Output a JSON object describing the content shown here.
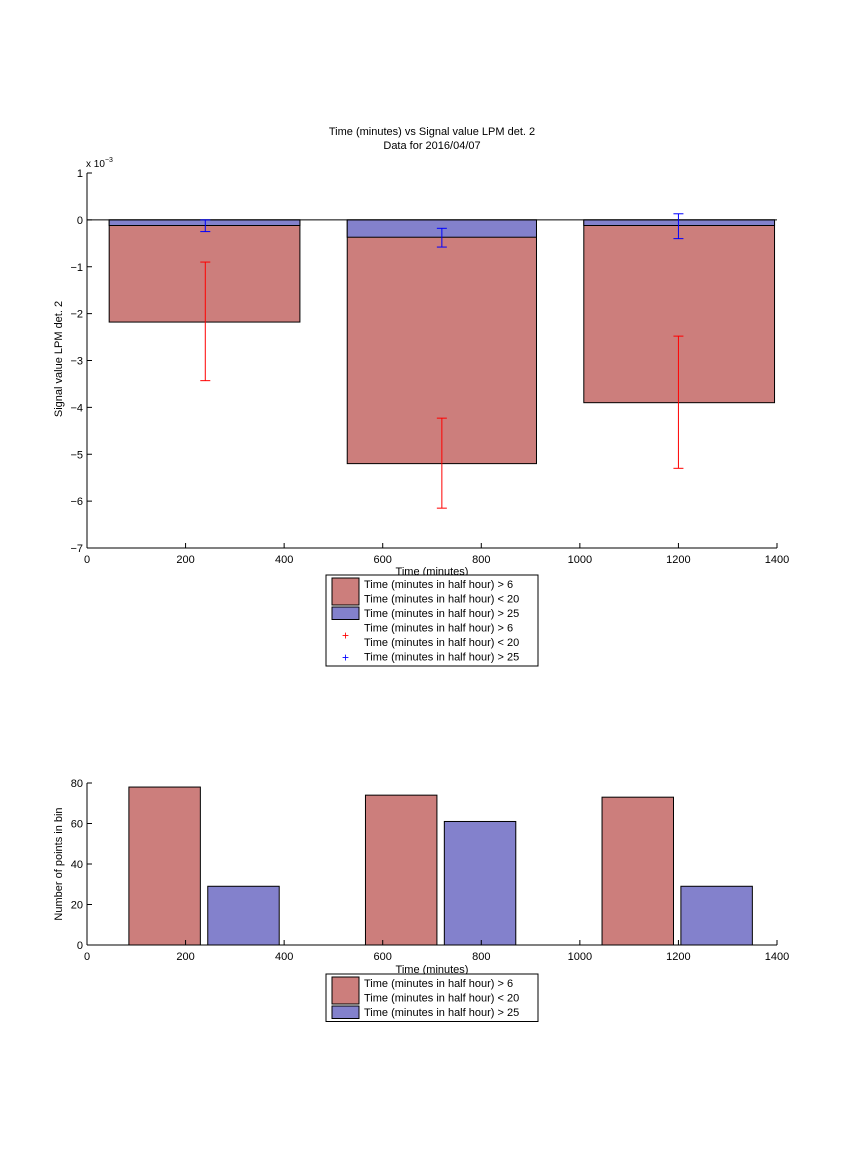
{
  "chart_data": [
    {
      "type": "bar",
      "title": "Time (minutes) vs Signal value LPM det. 2",
      "subtitle": "Data for 2016/04/07",
      "xlabel": "Time (minutes)",
      "ylabel": "Signal value LPM det. 2",
      "y_multiplier_label": "x 10",
      "y_multiplier_exponent": "−3",
      "xlim": [
        0,
        1400
      ],
      "ylim": [
        -7,
        1
      ],
      "xticks": [
        0,
        200,
        400,
        600,
        800,
        1000,
        1200,
        1400
      ],
      "yticks": [
        1,
        0,
        -1,
        -2,
        -3,
        -4,
        -5,
        -6,
        -7
      ],
      "grid": false,
      "legend_position": "below",
      "bars": [
        {
          "series": "red",
          "x_start": 45,
          "x_end": 432,
          "value": -2.18
        },
        {
          "series": "blue",
          "x_start": 45,
          "x_end": 432,
          "value": -0.12
        },
        {
          "series": "red",
          "x_start": 528,
          "x_end": 912,
          "value": -5.2
        },
        {
          "series": "blue",
          "x_start": 528,
          "x_end": 912,
          "value": -0.37
        },
        {
          "series": "red",
          "x_start": 1008,
          "x_end": 1395,
          "value": -3.9
        },
        {
          "series": "blue",
          "x_start": 1008,
          "x_end": 1395,
          "value": -0.12
        }
      ],
      "errorbars": [
        {
          "series": "red",
          "x": 240,
          "value": -2.18,
          "low": -3.43,
          "high": -0.9
        },
        {
          "series": "blue",
          "x": 240,
          "value": -0.12,
          "low": -0.25,
          "high": 0.0
        },
        {
          "series": "red",
          "x": 720,
          "value": -5.2,
          "low": -6.15,
          "high": -4.23
        },
        {
          "series": "blue",
          "x": 720,
          "value": -0.37,
          "low": -0.58,
          "high": -0.18
        },
        {
          "series": "red",
          "x": 1200,
          "value": -3.9,
          "low": -5.3,
          "high": -2.48
        },
        {
          "series": "blue",
          "x": 1200,
          "value": -0.12,
          "low": -0.4,
          "high": 0.13
        }
      ],
      "legend": [
        {
          "swatch": "patch",
          "series": "red",
          "lines": [
            "Time (minutes in half hour) > 6",
            "Time (minutes in half hour) < 20"
          ]
        },
        {
          "swatch": "patch",
          "series": "blue",
          "lines": [
            "Time (minutes in half hour) > 25"
          ]
        },
        {
          "swatch": "marker",
          "series": "red",
          "lines": [
            "Time (minutes in half hour) > 6",
            "Time (minutes in half hour) < 20"
          ]
        },
        {
          "swatch": "marker",
          "series": "blue",
          "lines": [
            "Time (minutes in half hour) > 25"
          ]
        }
      ]
    },
    {
      "type": "bar",
      "xlabel": "Time (minutes)",
      "ylabel": "Number of points in bin",
      "xlim": [
        0,
        1400
      ],
      "ylim": [
        0,
        80
      ],
      "xticks": [
        0,
        200,
        400,
        600,
        800,
        1000,
        1200,
        1400
      ],
      "yticks": [
        80,
        60,
        40,
        20,
        0
      ],
      "grid": false,
      "legend_position": "below",
      "bars": [
        {
          "series": "red",
          "x_start": 85,
          "x_end": 230,
          "value": 78
        },
        {
          "series": "blue",
          "x_start": 245,
          "x_end": 390,
          "value": 29
        },
        {
          "series": "red",
          "x_start": 565,
          "x_end": 710,
          "value": 74
        },
        {
          "series": "blue",
          "x_start": 725,
          "x_end": 870,
          "value": 61
        },
        {
          "series": "red",
          "x_start": 1045,
          "x_end": 1190,
          "value": 73
        },
        {
          "series": "blue",
          "x_start": 1205,
          "x_end": 1350,
          "value": 29
        }
      ],
      "legend": [
        {
          "swatch": "patch",
          "series": "red",
          "lines": [
            "Time (minutes in half hour) > 6",
            "Time (minutes in half hour) < 20"
          ]
        },
        {
          "swatch": "patch",
          "series": "blue",
          "lines": [
            "Time (minutes in half hour) > 25"
          ]
        }
      ]
    }
  ],
  "colors": {
    "red_fill": "#cc7e7c",
    "blue_fill": "#8381cc",
    "red_line": "#ff0000",
    "blue_line": "#0000ff",
    "axis": "#000000"
  }
}
